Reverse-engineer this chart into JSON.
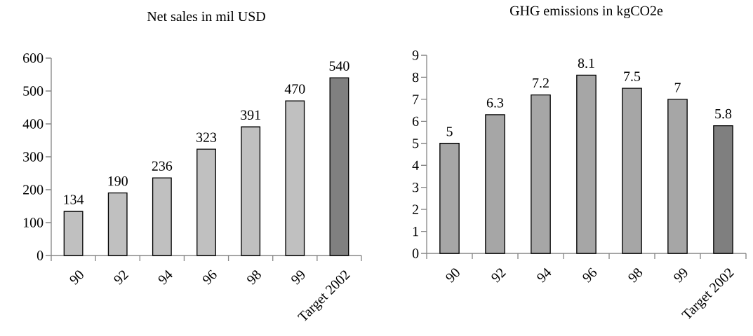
{
  "chart_data": [
    {
      "type": "bar",
      "title": "Net sales in mil USD",
      "categories": [
        "90",
        "92",
        "94",
        "96",
        "98",
        "99",
        "Target 2002"
      ],
      "values": [
        134,
        190,
        236,
        323,
        391,
        470,
        540
      ],
      "colors": [
        "#c0c0c0",
        "#c0c0c0",
        "#c0c0c0",
        "#c0c0c0",
        "#c0c0c0",
        "#c0c0c0",
        "#808080"
      ],
      "ylim": [
        0,
        600
      ],
      "yticks": [
        0,
        100,
        200,
        300,
        400,
        500,
        600
      ],
      "data_labels": true
    },
    {
      "type": "bar",
      "title": "GHG emissions in kgCO2e",
      "categories": [
        "90",
        "92",
        "94",
        "96",
        "98",
        "99",
        "Target 2002"
      ],
      "values": [
        5,
        6.3,
        7.2,
        8.1,
        7.5,
        7,
        5.8
      ],
      "colors": [
        "#a6a6a6",
        "#a6a6a6",
        "#a6a6a6",
        "#a6a6a6",
        "#a6a6a6",
        "#a6a6a6",
        "#7f7f7f"
      ],
      "ylim": [
        0,
        9
      ],
      "yticks": [
        0,
        1,
        2,
        3,
        4,
        5,
        6,
        7,
        8,
        9
      ],
      "data_labels": true
    }
  ]
}
